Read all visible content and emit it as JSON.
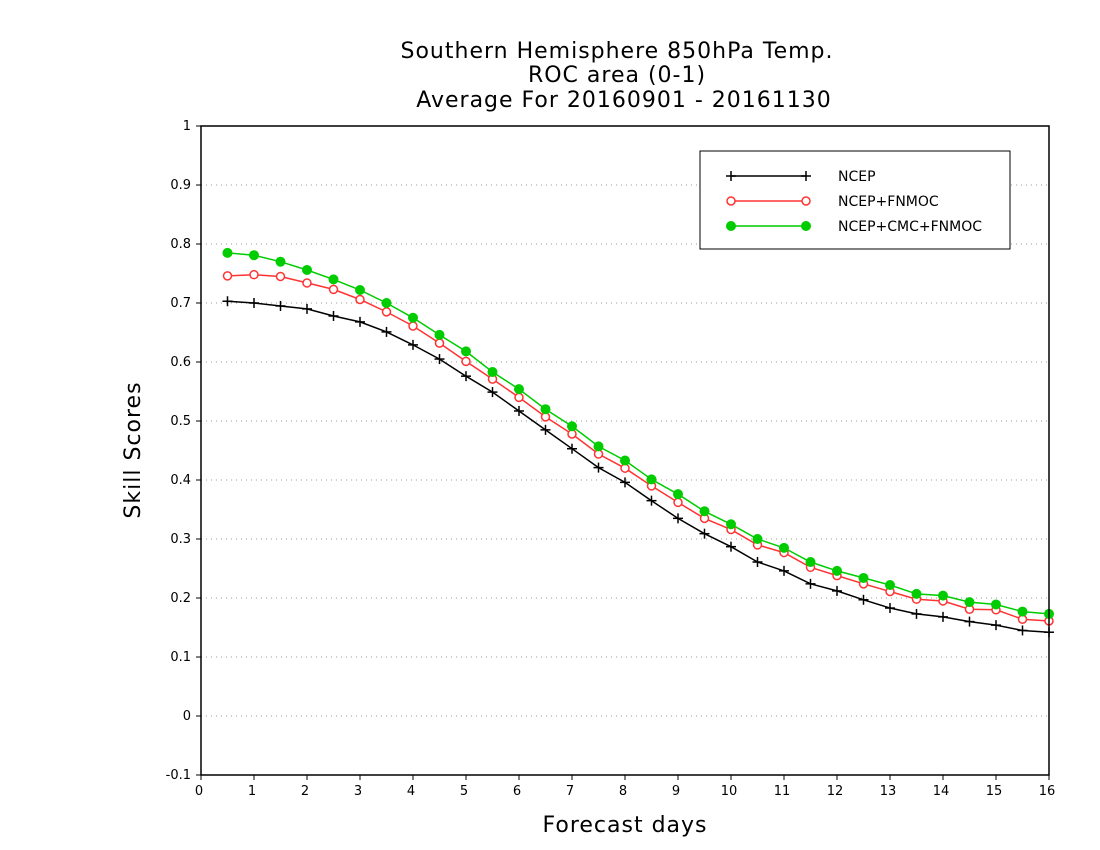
{
  "chart_data": {
    "type": "line",
    "title": [
      "Southern Hemisphere 850hPa Temp.",
      "ROC area (0-1)",
      "Average For 20160901 - 20161130"
    ],
    "xlabel": "Forecast days",
    "ylabel": "Skill Scores",
    "xlim": [
      0,
      16
    ],
    "ylim": [
      -0.1,
      1
    ],
    "xticks": [
      0,
      1,
      2,
      3,
      4,
      5,
      6,
      7,
      8,
      9,
      10,
      11,
      12,
      13,
      14,
      15,
      16
    ],
    "yticks": [
      -0.1,
      0,
      0.1,
      0.2,
      0.3,
      0.4,
      0.5,
      0.6,
      0.7,
      0.8,
      0.9,
      1
    ],
    "ytick_labels": [
      "-0.1",
      "0",
      "0.1",
      "0.2",
      "0.3",
      "0.4",
      "0.5",
      "0.6",
      "0.7",
      "0.8",
      "0.9",
      "1"
    ],
    "grid": "horizontal dotted",
    "legend_position": "top-right",
    "x": [
      0.5,
      1,
      1.5,
      2,
      2.5,
      3,
      3.5,
      4,
      4.5,
      5,
      5.5,
      6,
      6.5,
      7,
      7.5,
      8,
      8.5,
      9,
      9.5,
      10,
      10.5,
      11,
      11.5,
      12,
      12.5,
      13,
      13.5,
      14,
      14.5,
      15,
      15.5,
      16
    ],
    "series": [
      {
        "name": "NCEP",
        "color": "#000000",
        "marker": "plus",
        "values": [
          0.703,
          0.7,
          0.695,
          0.69,
          0.678,
          0.668,
          0.651,
          0.629,
          0.605,
          0.576,
          0.549,
          0.517,
          0.485,
          0.453,
          0.421,
          0.396,
          0.365,
          0.335,
          0.309,
          0.287,
          0.261,
          0.246,
          0.224,
          0.212,
          0.197,
          0.183,
          0.173,
          0.168,
          0.16,
          0.154,
          0.145,
          0.142
        ]
      },
      {
        "name": "NCEP+FNMOC",
        "color": "#ff3333",
        "marker": "open-circle",
        "values": [
          0.746,
          0.748,
          0.745,
          0.734,
          0.723,
          0.706,
          0.685,
          0.661,
          0.632,
          0.601,
          0.571,
          0.54,
          0.507,
          0.478,
          0.444,
          0.42,
          0.39,
          0.362,
          0.335,
          0.316,
          0.29,
          0.277,
          0.252,
          0.238,
          0.224,
          0.211,
          0.198,
          0.195,
          0.181,
          0.18,
          0.164,
          0.161
        ]
      },
      {
        "name": "NCEP+CMC+FNMOC",
        "color": "#00cc00",
        "marker": "filled-circle",
        "values": [
          0.785,
          0.781,
          0.77,
          0.756,
          0.74,
          0.722,
          0.7,
          0.675,
          0.646,
          0.618,
          0.583,
          0.554,
          0.52,
          0.491,
          0.457,
          0.433,
          0.401,
          0.376,
          0.347,
          0.325,
          0.3,
          0.285,
          0.261,
          0.246,
          0.234,
          0.222,
          0.207,
          0.204,
          0.193,
          0.189,
          0.177,
          0.173
        ]
      }
    ]
  }
}
